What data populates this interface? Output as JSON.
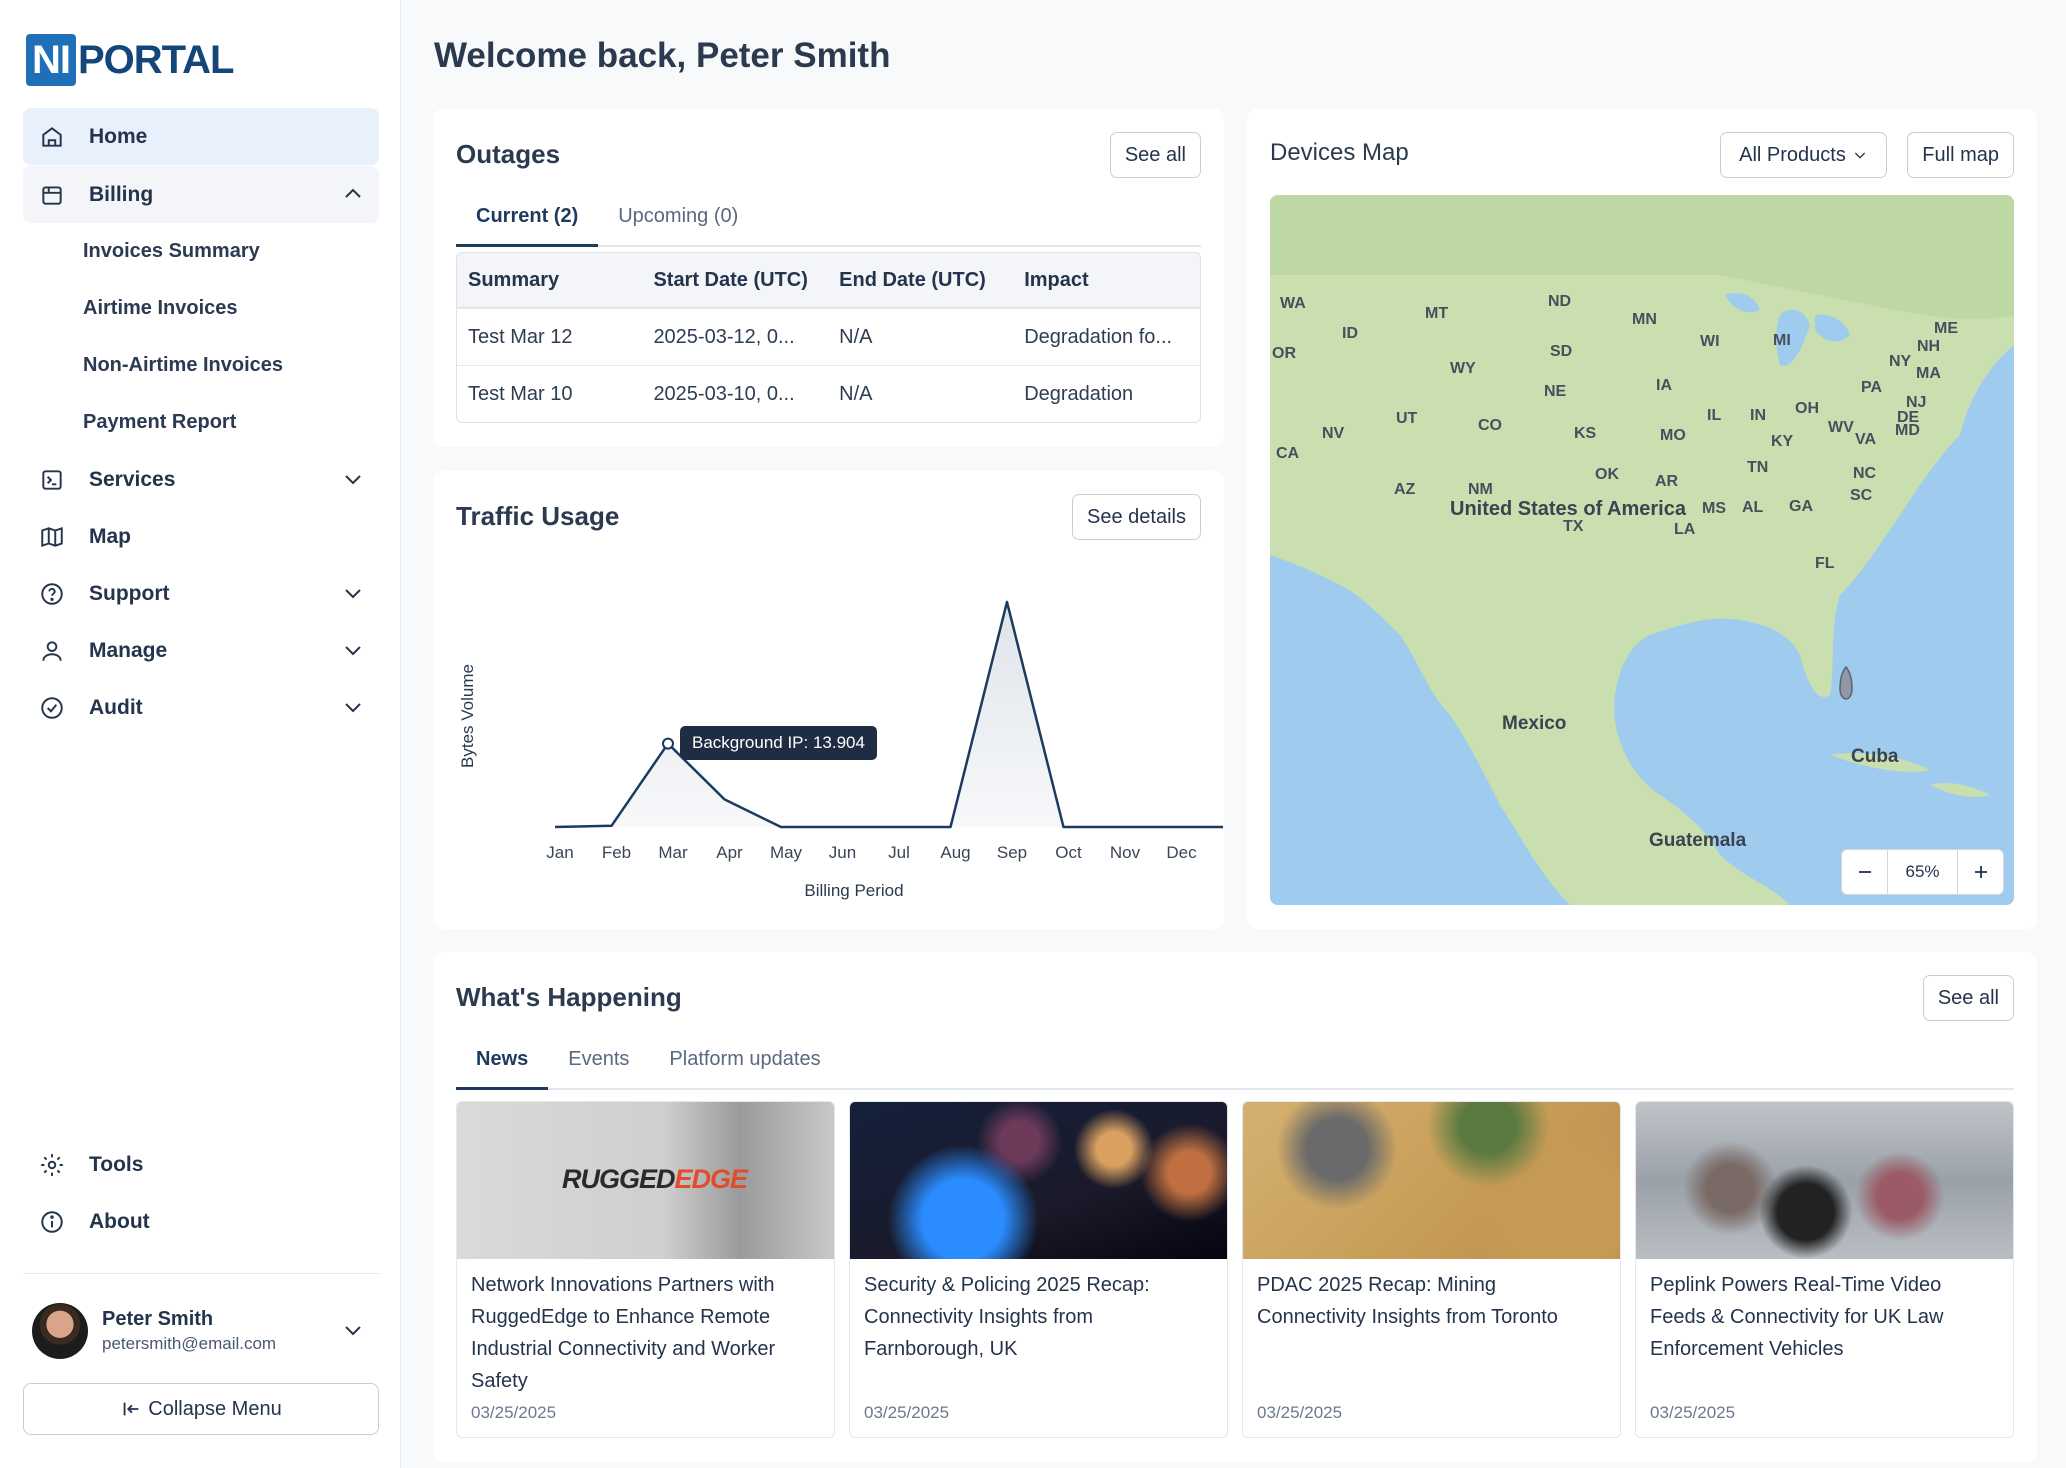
{
  "app": {
    "logo_ni": "NI",
    "logo_portal": "PORTAL"
  },
  "sidebar": {
    "items": [
      {
        "label": "Home",
        "icon": "home-icon"
      },
      {
        "label": "Billing",
        "icon": "billing-icon"
      },
      {
        "label": "Services",
        "icon": "services-icon"
      },
      {
        "label": "Map",
        "icon": "map-icon"
      },
      {
        "label": "Support",
        "icon": "help-icon"
      },
      {
        "label": "Manage",
        "icon": "user-icon"
      },
      {
        "label": "Audit",
        "icon": "check-circle-icon"
      }
    ],
    "billing_sub": [
      "Invoices Summary",
      "Airtime Invoices",
      "Non-Airtime Invoices",
      "Payment Report"
    ],
    "bottom": [
      {
        "label": "Tools",
        "icon": "gear-icon"
      },
      {
        "label": "About",
        "icon": "info-icon"
      }
    ],
    "user": {
      "name": "Peter Smith",
      "email": "petersmith@email.com"
    },
    "collapse_label": "Collapse Menu"
  },
  "page": {
    "title": "Welcome back, Peter Smith"
  },
  "outages": {
    "title": "Outages",
    "see_all": "See all",
    "tabs": [
      "Current (2)",
      "Upcoming (0)"
    ],
    "columns": [
      "Summary",
      "Start Date (UTC)",
      "End Date (UTC)",
      "Impact"
    ],
    "rows": [
      [
        "Test Mar 12",
        "2025-03-12, 0...",
        "N/A",
        "Degradation fo..."
      ],
      [
        "Test Mar 10",
        "2025-03-10, 0...",
        "N/A",
        "Degradation"
      ]
    ]
  },
  "traffic": {
    "title": "Traffic Usage",
    "see_details": "See details",
    "tooltip": "Background IP: 13.904"
  },
  "chart_data": {
    "type": "area",
    "categories": [
      "Jan",
      "Feb",
      "Mar",
      "Apr",
      "May",
      "Jun",
      "Jul",
      "Aug",
      "Sep",
      "Oct",
      "Nov",
      "Dec"
    ],
    "series": [
      {
        "name": "Background IP",
        "values": [
          0,
          0.2,
          13.904,
          4.6,
          0,
          0,
          0,
          0,
          37.5,
          0,
          0,
          0
        ]
      }
    ],
    "xlabel": "Billing Period",
    "ylabel": "Bytes Volume",
    "ylim": [
      0,
      40
    ]
  },
  "devices_map": {
    "title": "Devices Map",
    "filter": "All Products",
    "full_map": "Full map",
    "zoom": "65%",
    "labels": {
      "country": "United States of America",
      "mexico": "Mexico",
      "cuba": "Cuba",
      "guatemala": "Guatemala"
    },
    "states": [
      "WA",
      "OR",
      "CA",
      "ID",
      "NV",
      "MT",
      "WY",
      "UT",
      "AZ",
      "CO",
      "NM",
      "ND",
      "SD",
      "NE",
      "KS",
      "OK",
      "TX",
      "MN",
      "IA",
      "MO",
      "AR",
      "LA",
      "WI",
      "IL",
      "MS",
      "MI",
      "IN",
      "KY",
      "TN",
      "AL",
      "OH",
      "GA",
      "FL",
      "WV",
      "VA",
      "NC",
      "SC",
      "PA",
      "NY",
      "DE",
      "MD",
      "NJ",
      "MA",
      "NH",
      "ME"
    ]
  },
  "news": {
    "title": "What's Happening",
    "see_all": "See all",
    "tabs": [
      "News",
      "Events",
      "Platform updates"
    ],
    "logo_text_1": "RUGGED",
    "logo_text_2": "EDGE",
    "items": [
      {
        "title": "Network Innovations Partners with RuggedEdge to Enhance Remote Industrial Connectivity and Worker Safety",
        "date": "03/25/2025"
      },
      {
        "title": "Security & Policing 2025 Recap: Connectivity Insights from Farnborough, UK",
        "date": "03/25/2025"
      },
      {
        "title": "PDAC 2025 Recap: Mining Connectivity Insights from Toronto",
        "date": "03/25/2025"
      },
      {
        "title": "Peplink Powers Real-Time Video Feeds & Connectivity for UK Law Enforcement Vehicles",
        "date": "03/25/2025"
      }
    ]
  }
}
